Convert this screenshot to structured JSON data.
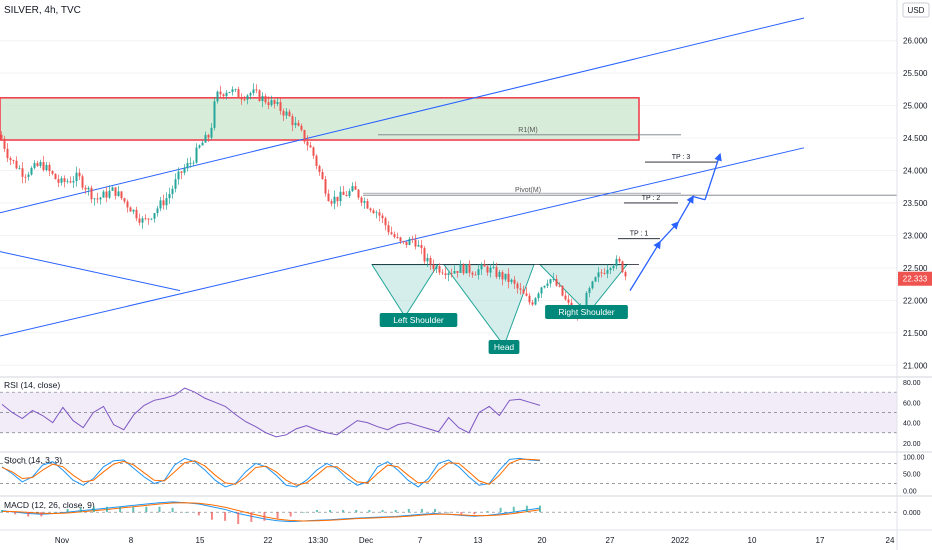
{
  "header": {
    "symbol_label": "SILVER, 4h, TVC",
    "currency": "USD"
  },
  "colors": {
    "up": "#26a69a",
    "down": "#ef5350",
    "trend": "#2962ff",
    "zone_fill": "#c8e6c9",
    "zone_border": "#f23645",
    "pattern_fill": "#b2dfdb",
    "pattern_stroke": "#26a69a",
    "rsi_line": "#7e57c2",
    "rsi_band": "#ede7f6",
    "stoch_k": "#2196f3",
    "stoch_d": "#ff6d00",
    "macd_line": "#2196f3",
    "signal_line": "#ff6d00",
    "price_badge": "#ef5350"
  },
  "chart_data": {
    "type": "candlestick",
    "title": "SILVER, 4h, TVC",
    "price_axis": {
      "ticks": [
        "21.000",
        "21.500",
        "22.000",
        "22.500",
        "23.000",
        "23.500",
        "24.000",
        "24.500",
        "25.000",
        "25.500",
        "26.000"
      ],
      "ylim": [
        20.85,
        26.55
      ]
    },
    "time_axis": {
      "ticks": [
        "Nov",
        "8",
        "15",
        "22",
        "13:30",
        "Dec",
        "7",
        "13",
        "20",
        "27",
        "2022",
        "10",
        "17",
        "24"
      ]
    },
    "last_price": "22.333",
    "price_path": [
      [
        0,
        24.55
      ],
      [
        3,
        24.2
      ],
      [
        8,
        23.95
      ],
      [
        14,
        24.1
      ],
      [
        20,
        23.8
      ],
      [
        26,
        23.9
      ],
      [
        32,
        23.55
      ],
      [
        38,
        23.7
      ],
      [
        44,
        23.4
      ],
      [
        48,
        23.2
      ],
      [
        52,
        23.4
      ],
      [
        56,
        23.6
      ],
      [
        60,
        23.95
      ],
      [
        64,
        24.15
      ],
      [
        67,
        24.4
      ],
      [
        70,
        24.55
      ],
      [
        72,
        25.15
      ],
      [
        76,
        25.25
      ],
      [
        80,
        25.15
      ],
      [
        84,
        25.2
      ],
      [
        88,
        25.1
      ],
      [
        92,
        25.0
      ],
      [
        96,
        24.85
      ],
      [
        100,
        24.6
      ],
      [
        104,
        24.3
      ],
      [
        107,
        23.9
      ],
      [
        110,
        23.55
      ],
      [
        114,
        23.6
      ],
      [
        118,
        23.7
      ],
      [
        122,
        23.5
      ],
      [
        126,
        23.35
      ],
      [
        130,
        23.05
      ],
      [
        134,
        22.85
      ],
      [
        138,
        22.95
      ],
      [
        142,
        22.6
      ],
      [
        146,
        22.5
      ],
      [
        150,
        22.45
      ],
      [
        154,
        22.5
      ],
      [
        158,
        22.45
      ],
      [
        162,
        22.5
      ],
      [
        166,
        22.4
      ],
      [
        170,
        22.3
      ],
      [
        174,
        22.1
      ],
      [
        177,
        21.95
      ],
      [
        180,
        22.2
      ],
      [
        183,
        22.35
      ],
      [
        186,
        22.2
      ],
      [
        189,
        21.95
      ],
      [
        192,
        21.75
      ],
      [
        194,
        21.85
      ],
      [
        196,
        22.1
      ],
      [
        199,
        22.35
      ],
      [
        202,
        22.5
      ],
      [
        204,
        22.6
      ],
      [
        207,
        22.55
      ],
      [
        209,
        22.33
      ]
    ],
    "zone": {
      "low": 24.47,
      "high": 25.12,
      "label": ""
    },
    "levels": [
      {
        "name": "R1(M)",
        "price": 24.55
      },
      {
        "name": "Pivot(M)",
        "price": 23.62
      }
    ],
    "targets": [
      {
        "label": "TP : 1",
        "price": 22.95
      },
      {
        "label": "TP : 2",
        "price": 23.5
      },
      {
        "label": "TP : 3",
        "price": 24.13
      }
    ],
    "pattern": {
      "neckline": 22.55,
      "left_shoulder": {
        "label": "Left Shoulder",
        "price": 21.75
      },
      "head": {
        "label": "Head",
        "price": 21.3
      },
      "right_shoulder": {
        "label": "Right Shoulder",
        "price": 21.8
      }
    },
    "projected_path": [
      [
        210,
        22.15
      ],
      [
        220,
        22.9
      ],
      [
        226,
        23.2
      ],
      [
        231,
        23.6
      ],
      [
        235,
        23.55
      ],
      [
        240,
        24.25
      ]
    ],
    "channel": {
      "upper": [
        [
          0,
          23.35
        ],
        [
          268,
          26.35
        ]
      ],
      "lower": [
        [
          0,
          21.45
        ],
        [
          268,
          24.35
        ]
      ],
      "side": [
        [
          0,
          22.75
        ],
        [
          60,
          22.15
        ]
      ]
    },
    "rsi": {
      "label": "RSI (14, close)",
      "ticks": [
        "80.00",
        "60.00",
        "40.00",
        "20.00"
      ],
      "ylim": [
        15,
        82
      ],
      "bands": [
        70,
        50,
        30
      ],
      "values": [
        58,
        50,
        44,
        52,
        47,
        40,
        55,
        42,
        35,
        50,
        56,
        38,
        33,
        48,
        57,
        62,
        64,
        67,
        74,
        70,
        64,
        60,
        56,
        48,
        41,
        36,
        30,
        26,
        28,
        34,
        37,
        33,
        30,
        28,
        35,
        42,
        40,
        36,
        33,
        38,
        40,
        37,
        34,
        31,
        45,
        35,
        30,
        50,
        56,
        47,
        62,
        63,
        60,
        57
      ]
    },
    "stoch": {
      "label": "Stoch (14, 3, 3)",
      "ticks": [
        "100.00",
        "50.00",
        "0.00"
      ],
      "ylim": [
        -5,
        105
      ],
      "k": [
        70,
        50,
        25,
        40,
        75,
        85,
        60,
        30,
        15,
        35,
        70,
        88,
        90,
        65,
        40,
        20,
        30,
        75,
        95,
        85,
        60,
        30,
        10,
        20,
        55,
        80,
        70,
        45,
        15,
        10,
        30,
        60,
        80,
        65,
        35,
        15,
        25,
        70,
        85,
        60,
        30,
        10,
        35,
        80,
        90,
        70,
        40,
        15,
        20,
        60,
        92,
        95,
        90,
        88
      ],
      "d": [
        68,
        55,
        35,
        38,
        60,
        78,
        70,
        45,
        25,
        30,
        55,
        78,
        86,
        75,
        52,
        30,
        28,
        55,
        82,
        88,
        72,
        45,
        22,
        18,
        40,
        68,
        72,
        55,
        30,
        15,
        22,
        45,
        70,
        70,
        48,
        25,
        22,
        50,
        75,
        70,
        45,
        22,
        25,
        60,
        82,
        80,
        55,
        28,
        18,
        45,
        80,
        92,
        92,
        90
      ],
      "bands": [
        80,
        20
      ]
    },
    "macd": {
      "label": "MACD (12, 26, close, 9)",
      "ticks": [
        "0.000"
      ],
      "ylim": [
        -0.55,
        0.45
      ],
      "macd": [
        0.05,
        0.0,
        -0.05,
        -0.08,
        -0.05,
        0.0,
        0.05,
        0.1,
        0.15,
        0.2,
        0.25,
        0.3,
        0.35,
        0.38,
        0.35,
        0.3,
        0.2,
        0.1,
        -0.05,
        -0.15,
        -0.25,
        -0.32,
        -0.35,
        -0.33,
        -0.3,
        -0.28,
        -0.25,
        -0.22,
        -0.2,
        -0.18,
        -0.16,
        -0.12,
        -0.08,
        -0.05,
        -0.08,
        -0.12,
        -0.15,
        -0.12,
        -0.06,
        0.0,
        0.08,
        0.15
      ],
      "signal": [
        0.03,
        0.02,
        -0.01,
        -0.04,
        -0.05,
        -0.03,
        0.01,
        0.05,
        0.1,
        0.15,
        0.2,
        0.25,
        0.3,
        0.34,
        0.35,
        0.33,
        0.27,
        0.18,
        0.06,
        -0.06,
        -0.17,
        -0.26,
        -0.31,
        -0.33,
        -0.32,
        -0.3,
        -0.27,
        -0.24,
        -0.22,
        -0.2,
        -0.18,
        -0.15,
        -0.11,
        -0.08,
        -0.08,
        -0.1,
        -0.13,
        -0.13,
        -0.1,
        -0.05,
        0.02,
        0.09
      ]
    }
  }
}
